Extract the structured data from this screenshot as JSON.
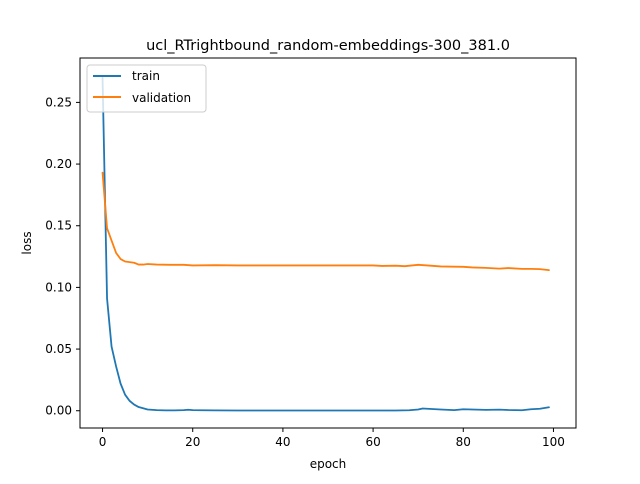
{
  "chart_data": {
    "type": "line",
    "title": "ucl_RTrightbound_random-embeddings-300_381.0",
    "xlabel": "epoch",
    "ylabel": "loss",
    "xlim": [
      -5,
      105
    ],
    "ylim": [
      -0.014,
      0.286
    ],
    "x_ticks": [
      0,
      20,
      40,
      60,
      80,
      100
    ],
    "x_tick_labels": [
      "0",
      "20",
      "40",
      "60",
      "80",
      "100"
    ],
    "y_ticks": [
      0.0,
      0.05,
      0.1,
      0.15,
      0.2,
      0.25
    ],
    "y_tick_labels": [
      "0.00",
      "0.05",
      "0.10",
      "0.15",
      "0.20",
      "0.25"
    ],
    "grid": false,
    "legend_position": "top-left",
    "series": [
      {
        "name": "train",
        "color": "#1f77b4",
        "x": [
          0,
          1,
          2,
          3,
          4,
          5,
          6,
          7,
          8,
          9,
          10,
          12,
          14,
          16,
          18,
          19,
          20,
          22,
          25,
          30,
          35,
          40,
          45,
          50,
          55,
          60,
          65,
          68,
          70,
          71,
          75,
          78,
          80,
          82,
          85,
          88,
          90,
          93,
          95,
          97,
          99
        ],
        "y": [
          0.27,
          0.091,
          0.052,
          0.036,
          0.022,
          0.013,
          0.008,
          0.005,
          0.003,
          0.002,
          0.001,
          0.0005,
          0.0003,
          0.0003,
          0.0005,
          0.0008,
          0.0005,
          0.0004,
          0.0003,
          0.0002,
          0.0002,
          0.0002,
          0.0002,
          0.0002,
          0.0002,
          0.0002,
          0.0002,
          0.0004,
          0.001,
          0.0018,
          0.001,
          0.0005,
          0.0012,
          0.001,
          0.0007,
          0.0009,
          0.0006,
          0.0004,
          0.0012,
          0.0016,
          0.0028
        ]
      },
      {
        "name": "validation",
        "color": "#ff7f0e",
        "x": [
          0,
          1,
          2,
          3,
          4,
          5,
          6,
          7,
          8,
          9,
          10,
          12,
          15,
          18,
          20,
          25,
          30,
          35,
          40,
          45,
          50,
          55,
          60,
          62,
          65,
          67,
          70,
          72,
          75,
          78,
          80,
          82,
          85,
          88,
          90,
          93,
          95,
          97,
          99
        ],
        "y": [
          0.193,
          0.148,
          0.138,
          0.128,
          0.123,
          0.121,
          0.1205,
          0.12,
          0.1185,
          0.1185,
          0.119,
          0.1185,
          0.1183,
          0.1183,
          0.1178,
          0.118,
          0.1178,
          0.1178,
          0.1178,
          0.1178,
          0.1178,
          0.1178,
          0.1178,
          0.1174,
          0.1176,
          0.1172,
          0.1183,
          0.1178,
          0.117,
          0.1168,
          0.1167,
          0.1162,
          0.1158,
          0.1152,
          0.1157,
          0.115,
          0.115,
          0.1148,
          0.114
        ]
      }
    ]
  }
}
